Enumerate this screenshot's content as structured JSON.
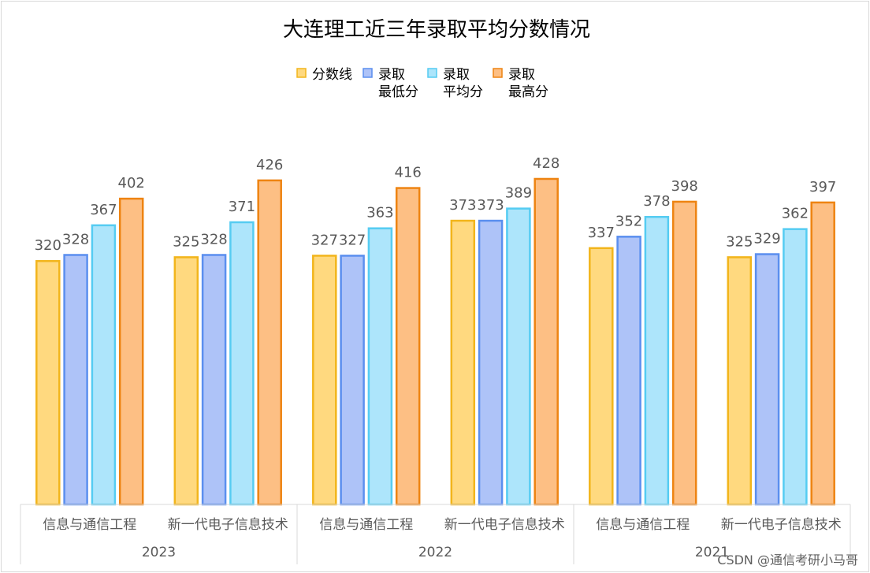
{
  "chart_data": {
    "type": "bar",
    "title": "大连理工近三年录取平均分数情况",
    "groups": [
      {
        "year": "2023",
        "categories": [
          "信息与通信工程",
          "新一代电子信息技术"
        ]
      },
      {
        "year": "2022",
        "categories": [
          "信息与通信工程",
          "新一代电子信息技术"
        ]
      },
      {
        "year": "2021",
        "categories": [
          "信息与通信工程",
          "新一代电子信息技术"
        ]
      }
    ],
    "series": [
      {
        "name": "分数线",
        "legend_lines": [
          "分数线"
        ],
        "fill": "#FFD97F",
        "stroke": "#F2B51C",
        "values": [
          320,
          325,
          327,
          373,
          337,
          325
        ]
      },
      {
        "name": "录取最低分",
        "legend_lines": [
          "录取",
          "最低分"
        ],
        "fill": "#AEC3F8",
        "stroke": "#5B8FEF",
        "values": [
          328,
          328,
          327,
          373,
          352,
          329
        ]
      },
      {
        "name": "录取平均分",
        "legend_lines": [
          "录取",
          "平均分"
        ],
        "fill": "#ADE5FB",
        "stroke": "#55CCF2",
        "values": [
          367,
          371,
          363,
          389,
          378,
          362
        ]
      },
      {
        "name": "录取最高分",
        "legend_lines": [
          "录取",
          "最高分"
        ],
        "fill": "#FDBF84",
        "stroke": "#EE8412",
        "values": [
          402,
          426,
          416,
          428,
          398,
          397
        ]
      }
    ],
    "ylim": [
      0,
      450
    ],
    "grid": false,
    "legend_position": "top"
  },
  "watermark": "CSDN @通信考研小马哥"
}
